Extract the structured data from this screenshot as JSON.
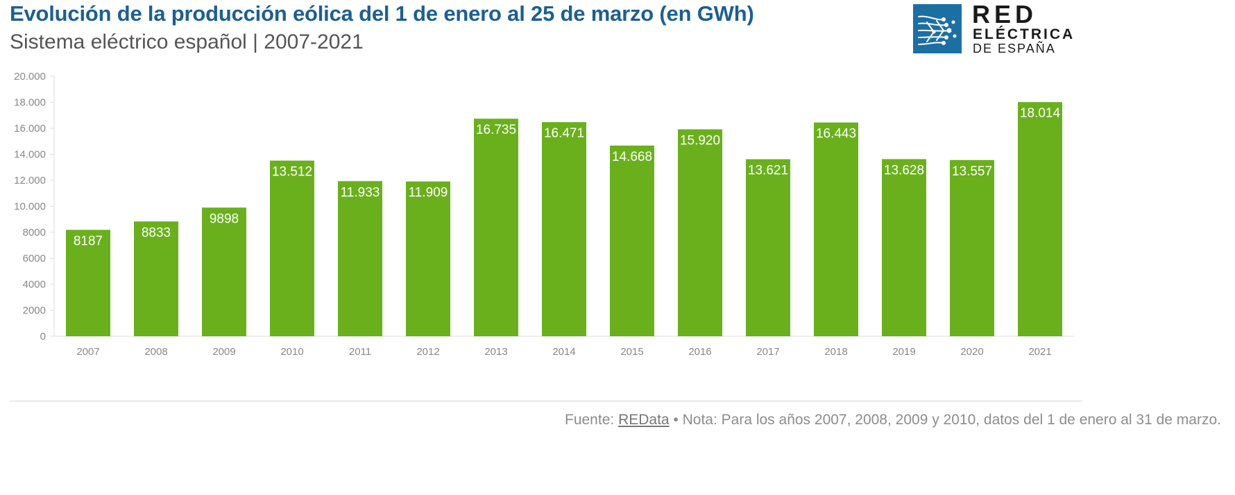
{
  "header": {
    "title": "Evolución de la producción eólica del 1 de enero al 25 de marzo (en GWh)",
    "subtitle": "Sistema eléctrico español | 2007-2021"
  },
  "logo": {
    "line1": "RED",
    "line2": "ELÉCTRICA",
    "line3": "DE ESPAÑA",
    "icon": "red-electrica-mark-icon"
  },
  "footer": {
    "prefix": "Fuente: ",
    "source_link": "REData",
    "note": " • Nota: Para los años 2007, 2008, 2009 y 2010, datos del 1 de enero al 31 de marzo."
  },
  "colors": {
    "bar": "#6ab01c",
    "title": "#1c5f93",
    "logo": "#1c6fa3"
  },
  "chart_data": {
    "type": "bar",
    "categories": [
      "2007",
      "2008",
      "2009",
      "2010",
      "2011",
      "2012",
      "2013",
      "2014",
      "2015",
      "2016",
      "2017",
      "2018",
      "2019",
      "2020",
      "2021"
    ],
    "values": [
      8187,
      8833,
      9898,
      13512,
      11933,
      11909,
      16735,
      16471,
      14668,
      15920,
      13621,
      16443,
      13628,
      13557,
      18014
    ],
    "data_labels": [
      "8187",
      "8833",
      "9898",
      "13.512",
      "11.933",
      "11.909",
      "16.735",
      "16.471",
      "14.668",
      "15.920",
      "13.621",
      "16.443",
      "13.628",
      "13.557",
      "18.014"
    ],
    "y_ticks": [
      0,
      2000,
      4000,
      6000,
      8000,
      10000,
      12000,
      14000,
      16000,
      18000,
      20000
    ],
    "y_tick_labels": [
      "0",
      "2000",
      "4000",
      "6000",
      "8000",
      "10.000",
      "12.000",
      "14.000",
      "16.000",
      "18.000",
      "20.000"
    ],
    "ylim": [
      0,
      20000
    ],
    "title": "Evolución de la producción eólica del 1 de enero al 25 de marzo (en GWh)",
    "xlabel": "",
    "ylabel": "",
    "grid": false,
    "legend": "none"
  }
}
